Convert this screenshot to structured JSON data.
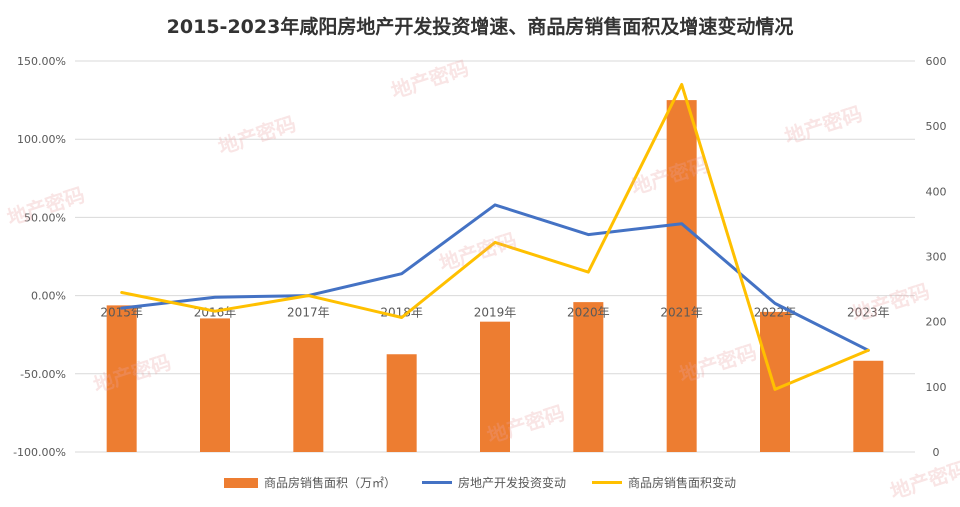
{
  "chart_data": {
    "type": "bar+line",
    "title": "2015-2023年咸阳房地产开发投资增速、商品房销售面积及增速变动情况",
    "categories": [
      "2015年",
      "2016年",
      "2017年",
      "2018年",
      "2019年",
      "2020年",
      "2021年",
      "2022年",
      "2023年"
    ],
    "left_axis": {
      "min": -100,
      "max": 150,
      "step": 50,
      "tick_labels": [
        "-100.00%",
        "-50.00%",
        "0.00%",
        "50.00%",
        "100.00%",
        "150.00%"
      ]
    },
    "right_axis": {
      "min": 0,
      "max": 600,
      "step": 100,
      "tick_labels": [
        "0",
        "100",
        "200",
        "300",
        "400",
        "500",
        "600"
      ]
    },
    "series": [
      {
        "name": "商品房销售面积（万㎡）",
        "type": "bar",
        "axis": "right",
        "values": [
          225,
          205,
          175,
          150,
          200,
          230,
          540,
          215,
          140
        ]
      },
      {
        "name": "房地产开发投资变动",
        "type": "line",
        "axis": "left",
        "values": [
          -8,
          -1,
          0,
          14,
          58,
          39,
          46,
          -5,
          -35
        ]
      },
      {
        "name": "商品房销售面积变动",
        "type": "line",
        "axis": "left",
        "values": [
          2,
          -10,
          0,
          -14,
          34,
          15,
          135,
          -60,
          -35
        ]
      }
    ],
    "colors": {
      "bar": "#ed7d31",
      "line1": "#4472c4",
      "line2": "#ffc000",
      "grid": "#d9d9d9",
      "text": "#595959"
    },
    "grid": true,
    "legend_position": "bottom",
    "watermark": "地产密码"
  }
}
